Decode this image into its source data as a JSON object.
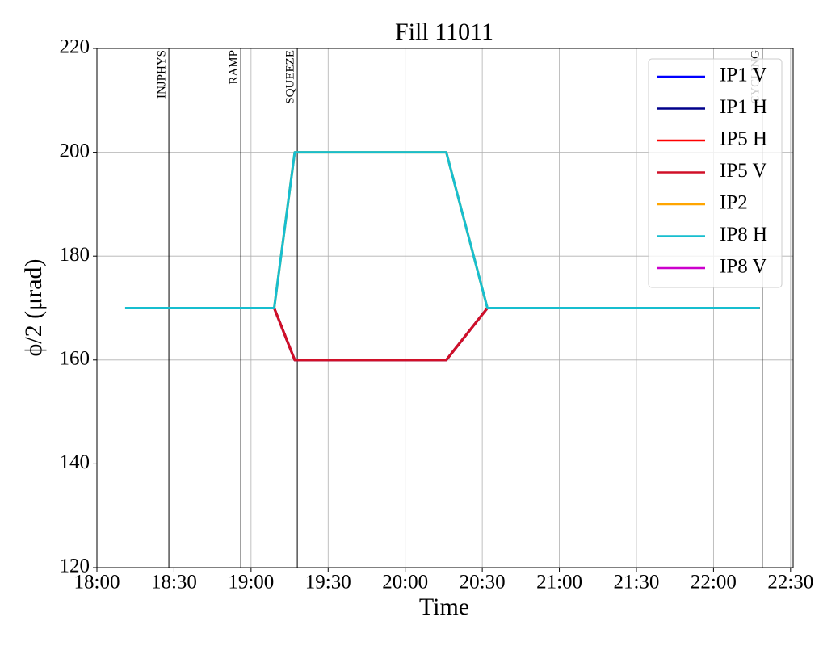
{
  "chart_data": {
    "type": "line",
    "title": "Fill 11011",
    "x_label": "Time",
    "y_label": "ϕ/2 (μrad)",
    "x": [
      "18:11",
      "19:09",
      "19:17",
      "20:16",
      "20:32",
      "22:18"
    ],
    "series": [
      {
        "name": "IP1 V",
        "color": "#0000ff",
        "values": [
          170,
          170,
          160,
          160,
          170,
          170
        ]
      },
      {
        "name": "IP1 H",
        "color": "#00008b",
        "values": [
          170,
          170,
          160,
          160,
          170,
          170
        ]
      },
      {
        "name": "IP5 H",
        "color": "#ff0000",
        "values": [
          170,
          170,
          160,
          160,
          170,
          170
        ]
      },
      {
        "name": "IP5 V",
        "color": "#d01028",
        "values": [
          170,
          170,
          160,
          160,
          170,
          170
        ]
      },
      {
        "name": "IP2",
        "color": "#ffa500",
        "values": [
          170,
          170,
          200,
          200,
          170,
          170
        ]
      },
      {
        "name": "IP8 H",
        "color": "#17becf",
        "values": [
          170,
          170,
          200,
          200,
          170,
          170
        ]
      },
      {
        "name": "IP8 V",
        "color": "#cc00cc",
        "values": [
          null,
          null,
          null,
          null,
          null,
          null
        ]
      }
    ],
    "events": [
      {
        "label": "INJPHYS",
        "x": "18:28"
      },
      {
        "label": "RAMP",
        "x": "18:56"
      },
      {
        "label": "SQUEEZE",
        "x": "19:18"
      },
      {
        "label": "CYCLING",
        "x": "22:19"
      }
    ],
    "xlim": [
      "18:00",
      "22:31"
    ],
    "xticks": [
      "18:00",
      "18:30",
      "19:00",
      "19:30",
      "20:00",
      "20:30",
      "21:00",
      "21:30",
      "22:00",
      "22:30"
    ],
    "ylim": [
      120,
      220
    ],
    "yticks": [
      120,
      140,
      160,
      180,
      200,
      220
    ],
    "grid": true,
    "legend": "upper right"
  }
}
